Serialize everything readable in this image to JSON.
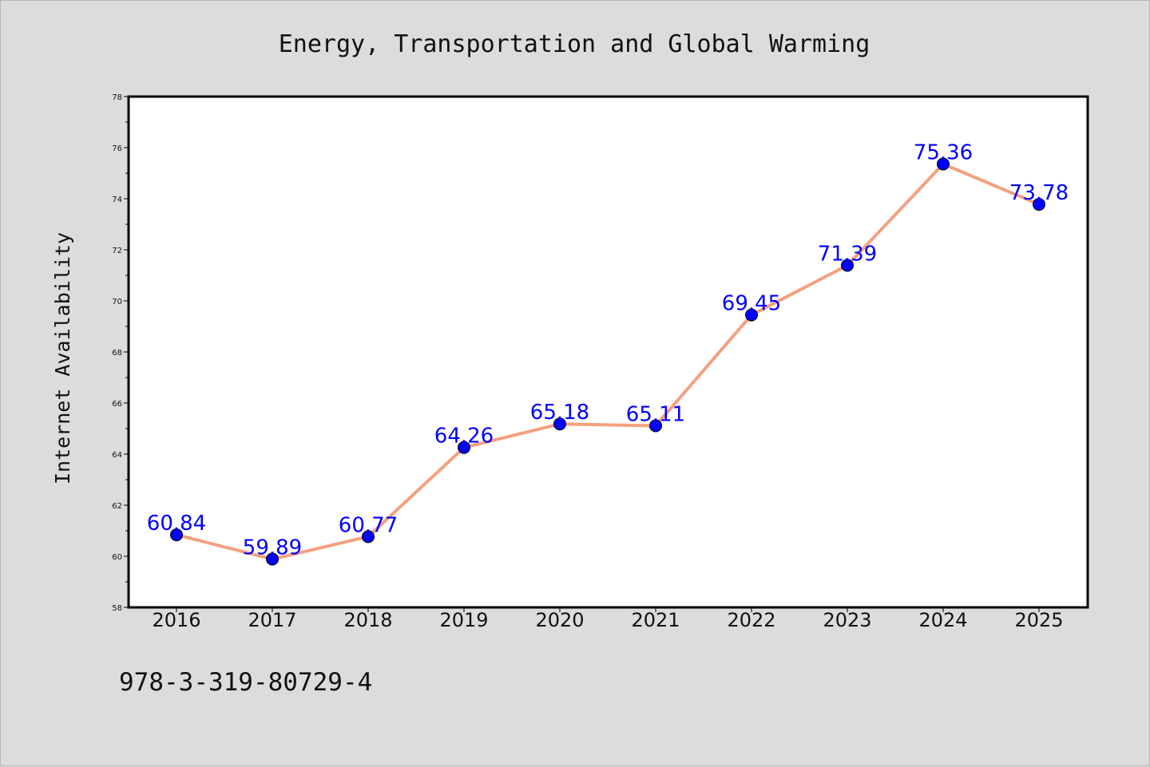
{
  "footer_text": "978-3-319-80729-4",
  "colors": {
    "background": "#dcdcdc",
    "plot_background": "#ffffff",
    "line": "#f4a07f",
    "marker": "#0000ff",
    "data_label": "#0000ff"
  },
  "chart_data": {
    "type": "line",
    "title": "Energy, Transportation and Global Warming",
    "xlabel": "",
    "ylabel": "Internet Availability",
    "categories": [
      "2016",
      "2017",
      "2018",
      "2019",
      "2020",
      "2021",
      "2022",
      "2023",
      "2024",
      "2025"
    ],
    "series": [
      {
        "values": [
          60.84,
          59.89,
          60.77,
          64.26,
          65.18,
          65.11,
          69.45,
          71.39,
          75.36,
          73.78
        ],
        "labels": [
          "60.84",
          "59.89",
          "60.77",
          "64.26",
          "65.18",
          "65.11",
          "69.45",
          "71.39",
          "75.36",
          "73.78"
        ]
      }
    ],
    "ylim": [
      58,
      78
    ],
    "yticks": [
      "58",
      "60",
      "62",
      "64",
      "66",
      "68",
      "70",
      "72",
      "74",
      "76",
      "78"
    ],
    "grid": false,
    "legend": "none"
  }
}
